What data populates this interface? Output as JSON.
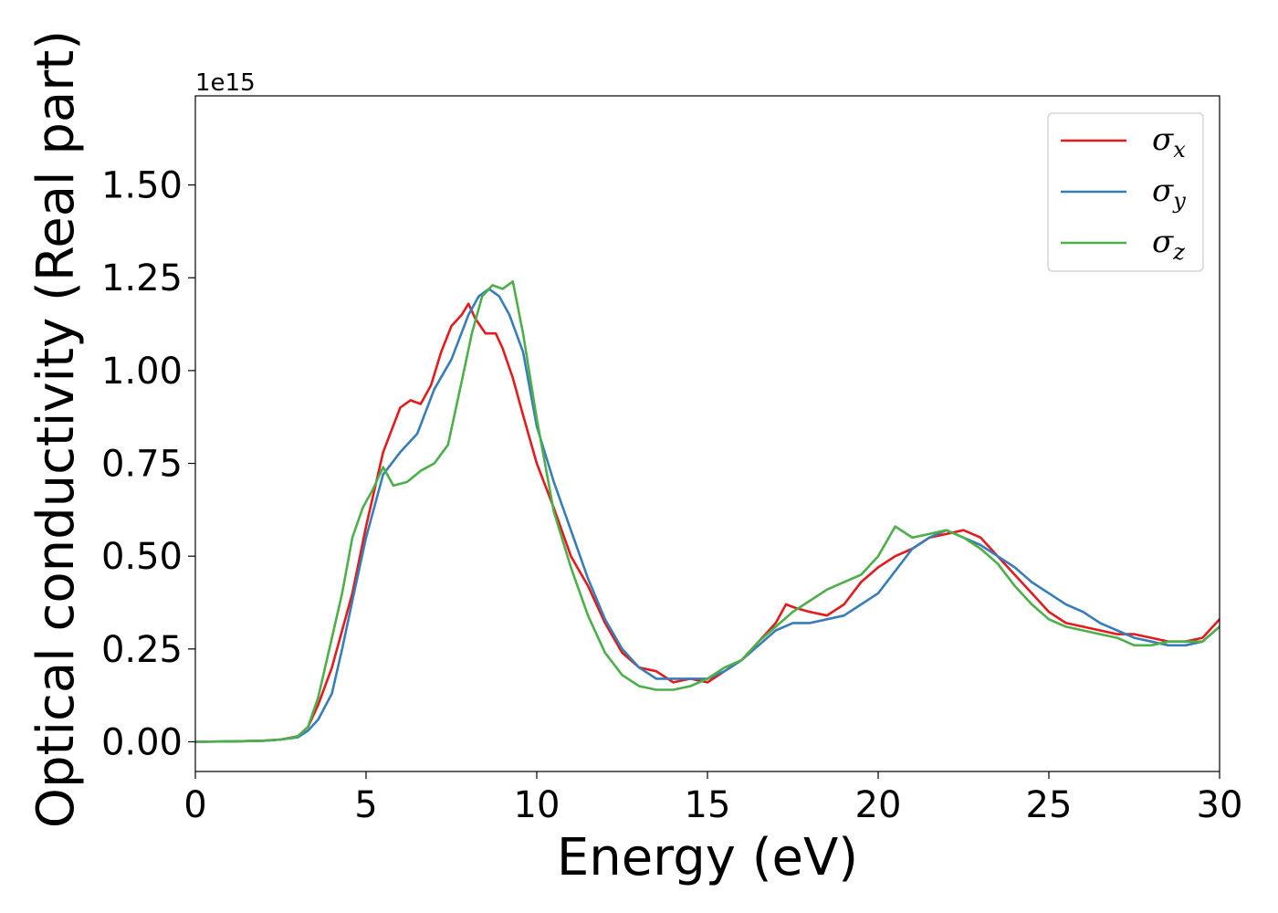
{
  "chart_data": {
    "type": "line",
    "xlabel": "Energy (eV)",
    "ylabel": "Optical conductivity (Real part)",
    "y_offset_text": "1e15",
    "xlim": [
      0,
      30
    ],
    "ylim": [
      -0.08,
      1.74
    ],
    "x_ticks": [
      0,
      5,
      10,
      15,
      20,
      25,
      30
    ],
    "x_tick_labels": [
      "0",
      "5",
      "10",
      "15",
      "20",
      "25",
      "30"
    ],
    "y_ticks": [
      0,
      0.25,
      0.5,
      0.75,
      1.0,
      1.25,
      1.5
    ],
    "y_tick_labels": [
      "0.00",
      "0.25",
      "0.50",
      "0.75",
      "1.00",
      "1.25",
      "1.50"
    ],
    "grid": false,
    "legend_position": "top-right",
    "series": [
      {
        "name": "σx",
        "label_symbol": "σ",
        "label_sub": "x",
        "color": "#e41a1c",
        "x": [
          0,
          1,
          2,
          2.5,
          3,
          3.3,
          3.6,
          4.0,
          4.3,
          4.6,
          5.0,
          5.5,
          6.0,
          6.3,
          6.6,
          6.9,
          7.2,
          7.5,
          7.8,
          8.0,
          8.2,
          8.5,
          8.8,
          9.0,
          9.3,
          9.6,
          10.0,
          10.5,
          11.0,
          11.5,
          12.0,
          12.5,
          13.0,
          13.5,
          14.0,
          14.5,
          15.0,
          15.5,
          16.0,
          16.5,
          17.0,
          17.3,
          17.6,
          18.0,
          18.5,
          19.0,
          19.5,
          20.0,
          20.5,
          21.0,
          21.5,
          22.0,
          22.5,
          23.0,
          23.5,
          24.0,
          24.5,
          25.0,
          25.5,
          26.0,
          26.5,
          27.0,
          27.5,
          28.0,
          28.5,
          29.0,
          29.5,
          30.0
        ],
        "values": [
          0.0,
          0.001,
          0.003,
          0.006,
          0.015,
          0.04,
          0.1,
          0.2,
          0.3,
          0.4,
          0.58,
          0.78,
          0.9,
          0.92,
          0.91,
          0.96,
          1.05,
          1.12,
          1.15,
          1.18,
          1.14,
          1.1,
          1.1,
          1.06,
          0.98,
          0.88,
          0.75,
          0.63,
          0.5,
          0.42,
          0.32,
          0.24,
          0.2,
          0.19,
          0.16,
          0.17,
          0.16,
          0.19,
          0.22,
          0.27,
          0.32,
          0.37,
          0.36,
          0.35,
          0.34,
          0.37,
          0.43,
          0.47,
          0.5,
          0.52,
          0.55,
          0.56,
          0.57,
          0.55,
          0.5,
          0.45,
          0.4,
          0.35,
          0.32,
          0.31,
          0.3,
          0.29,
          0.29,
          0.28,
          0.27,
          0.27,
          0.28,
          0.33
        ]
      },
      {
        "name": "σy",
        "label_symbol": "σ",
        "label_sub": "y",
        "color": "#377eb8",
        "x": [
          0,
          1,
          2,
          2.5,
          3,
          3.3,
          3.6,
          4.0,
          4.3,
          4.6,
          5.0,
          5.5,
          6.0,
          6.5,
          7.0,
          7.5,
          8.0,
          8.3,
          8.6,
          8.9,
          9.2,
          9.6,
          10.0,
          10.5,
          11.0,
          11.5,
          12.0,
          12.5,
          13.0,
          13.5,
          14.0,
          14.5,
          15.0,
          15.5,
          16.0,
          16.5,
          17.0,
          17.5,
          18.0,
          18.5,
          19.0,
          19.5,
          20.0,
          20.5,
          21.0,
          21.5,
          22.0,
          22.5,
          23.0,
          23.5,
          24.0,
          24.5,
          25.0,
          25.5,
          26.0,
          26.5,
          27.0,
          27.5,
          28.0,
          28.5,
          29.0,
          29.5,
          30.0
        ],
        "values": [
          0.0,
          0.001,
          0.003,
          0.006,
          0.012,
          0.03,
          0.06,
          0.13,
          0.25,
          0.38,
          0.55,
          0.72,
          0.78,
          0.83,
          0.95,
          1.03,
          1.15,
          1.2,
          1.22,
          1.2,
          1.15,
          1.05,
          0.85,
          0.7,
          0.57,
          0.44,
          0.33,
          0.25,
          0.2,
          0.17,
          0.17,
          0.17,
          0.17,
          0.19,
          0.22,
          0.26,
          0.3,
          0.32,
          0.32,
          0.33,
          0.34,
          0.37,
          0.4,
          0.46,
          0.52,
          0.55,
          0.57,
          0.55,
          0.53,
          0.5,
          0.47,
          0.43,
          0.4,
          0.37,
          0.35,
          0.32,
          0.3,
          0.28,
          0.27,
          0.26,
          0.26,
          0.27,
          0.31
        ]
      },
      {
        "name": "σz",
        "label_symbol": "σ",
        "label_sub": "z",
        "color": "#4daf4a",
        "x": [
          0,
          1,
          2,
          2.5,
          3,
          3.3,
          3.6,
          4.0,
          4.3,
          4.6,
          4.9,
          5.2,
          5.5,
          5.8,
          6.2,
          6.6,
          7.0,
          7.4,
          7.8,
          8.1,
          8.4,
          8.7,
          9.0,
          9.3,
          9.6,
          10.0,
          10.5,
          11.0,
          11.5,
          12.0,
          12.5,
          13.0,
          13.5,
          14.0,
          14.5,
          15.0,
          15.5,
          16.0,
          16.5,
          17.0,
          17.5,
          18.0,
          18.5,
          19.0,
          19.5,
          20.0,
          20.5,
          21.0,
          21.5,
          22.0,
          22.5,
          23.0,
          23.5,
          24.0,
          24.5,
          25.0,
          25.5,
          26.0,
          26.5,
          27.0,
          27.5,
          28.0,
          28.5,
          29.0,
          29.5,
          30.0
        ],
        "values": [
          0.0,
          0.001,
          0.003,
          0.006,
          0.014,
          0.04,
          0.12,
          0.28,
          0.4,
          0.55,
          0.63,
          0.68,
          0.74,
          0.69,
          0.7,
          0.73,
          0.75,
          0.8,
          0.97,
          1.1,
          1.2,
          1.23,
          1.22,
          1.24,
          1.1,
          0.87,
          0.62,
          0.47,
          0.34,
          0.24,
          0.18,
          0.15,
          0.14,
          0.14,
          0.15,
          0.17,
          0.2,
          0.22,
          0.27,
          0.31,
          0.35,
          0.38,
          0.41,
          0.43,
          0.45,
          0.5,
          0.58,
          0.55,
          0.56,
          0.57,
          0.55,
          0.52,
          0.48,
          0.42,
          0.37,
          0.33,
          0.31,
          0.3,
          0.29,
          0.28,
          0.26,
          0.26,
          0.27,
          0.27,
          0.27,
          0.31
        ]
      }
    ]
  }
}
